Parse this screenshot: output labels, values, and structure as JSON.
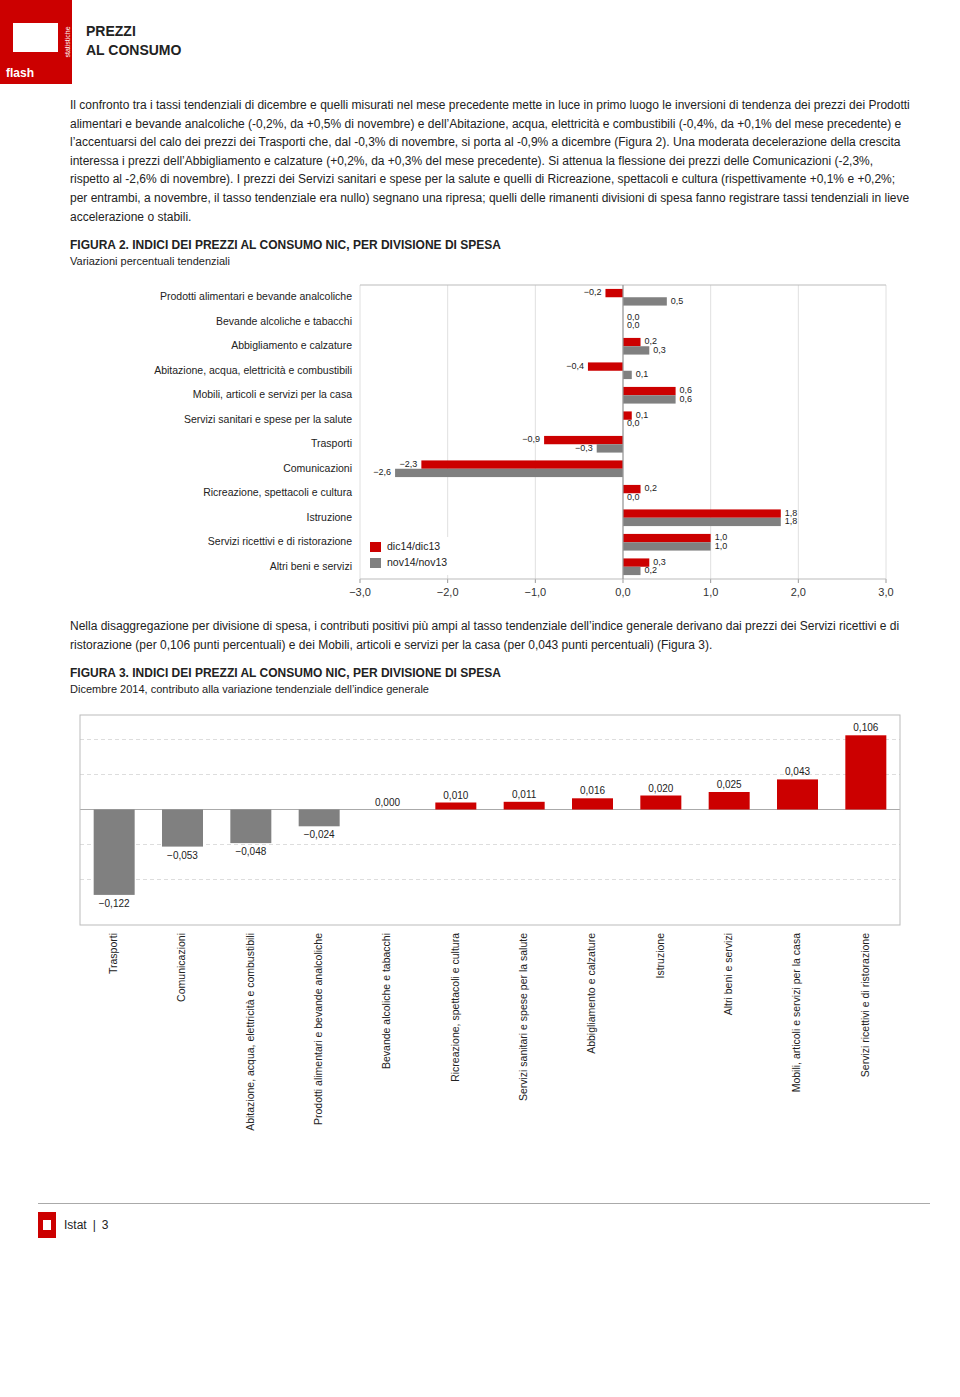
{
  "page": {
    "brand": "flash",
    "brand_subtitle": "statistiche",
    "header_title_line1": "PREZZI",
    "header_title_line2": "AL CONSUMO",
    "color": "#cc0000",
    "body_text1": "Il confronto tra i tassi tendenziali di dicembre e quelli misurati nel mese precedente mette in luce in primo luogo le inversioni di tendenza dei prezzi dei Prodotti alimentari e bevande analcoliche (-0,2%, da +0,5% di novembre) e dell’Abitazione, acqua, elettricità e combustibili (-0,4%, da +0,1% del mese precedente) e l’accentuarsi del calo dei prezzi dei Trasporti che, dal -0,3% di novembre, si porta al -0,9% a dicembre (Figura 2). Una moderata decelerazione della crescita interessa i prezzi dell’Abbigliamento e calzature (+0,2%, da +0,3% del mese precedente). Si attenua la flessione dei prezzi delle Comunicazioni (-2,3%, rispetto al -2,6% di novembre). I prezzi dei Servizi sanitari e spese per la salute e quelli di Ricreazione, spettacoli e cultura (rispettivamente +0,1% e +0,2%; per entrambi, a novembre, il tasso tendenziale era nullo) segnano una ripresa; quelli delle rimanenti divisioni di spesa fanno registrare tassi tendenziali in lieve accelerazione o stabili.",
    "body_text2": "Nella disaggregazione per divisione di spesa, i contributi positivi più ampi al tasso tendenziale dell’indice generale derivano dai prezzi dei Servizi ricettivi e di ristorazione (per 0,106 punti percentuali) e dei Mobili, articoli e servizi per la casa (per 0,043 punti percentuali) (Figura 3).",
    "footer_brand": "Istat",
    "footer_separator": "|",
    "footer_page": "3"
  },
  "chart_data": [
    {
      "type": "bar",
      "orientation": "horizontal",
      "title": "FIGURA 2. INDICI DEI PREZZI AL CONSUMO NIC, PER DIVISIONE DI SPESA",
      "subtitle": "Variazioni percentuali tendenziali",
      "categories": [
        "Prodotti alimentari e bevande analcoliche",
        "Bevande alcoliche e tabacchi",
        "Abbigliamento e calzature",
        "Abitazione, acqua, elettricità e combustibili",
        "Mobili, articoli e servizi per la casa",
        "Servizi sanitari e spese per la salute",
        "Trasporti",
        "Comunicazioni",
        "Ricreazione, spettacoli e cultura",
        "Istruzione",
        "Servizi ricettivi e di ristorazione",
        "Altri beni e servizi"
      ],
      "series": [
        {
          "name": "dic14/dic13",
          "color": "#cc0000",
          "values": [
            -0.2,
            0.0,
            0.2,
            -0.4,
            0.6,
            0.1,
            -0.9,
            -2.3,
            0.2,
            1.8,
            1.0,
            0.3
          ],
          "value_labels": [
            "−0,2",
            "0,0",
            "0,2",
            "−0,4",
            "0,6",
            "0,1",
            "−0,9",
            "−2,3",
            "0,2",
            "1,8",
            "1,0",
            "0,3"
          ]
        },
        {
          "name": "nov14/nov13",
          "color": "#808080",
          "values": [
            0.5,
            0.0,
            0.3,
            0.1,
            0.6,
            0.0,
            -0.3,
            -2.6,
            0.0,
            1.8,
            1.0,
            0.2
          ],
          "value_labels": [
            "0,5",
            "0,0",
            "0,3",
            "0,1",
            "0,6",
            "0,0",
            "−0,3",
            "−2,6",
            "0,0",
            "1,8",
            "1,0",
            "0,2"
          ]
        }
      ],
      "xlim": [
        -3.0,
        3.0
      ],
      "xticks": [
        {
          "value": -3.0,
          "label": "−3,0"
        },
        {
          "value": -2.0,
          "label": "−2,0"
        },
        {
          "value": -1.0,
          "label": "−1,0"
        },
        {
          "value": 0.0,
          "label": "0,0"
        },
        {
          "value": 1.0,
          "label": "1,0"
        },
        {
          "value": 2.0,
          "label": "2,0"
        },
        {
          "value": 3.0,
          "label": "3,0"
        }
      ],
      "grid": true,
      "legend": "lower left",
      "data_labels": true
    },
    {
      "type": "bar",
      "title": "FIGURA 3. INDICI DEI PREZZI AL CONSUMO NIC, PER DIVISIONE DI SPESA",
      "subtitle": "Dicembre 2014, contributo alla variazione tendenziale dell’indice generale",
      "categories": [
        "Trasporti",
        "Comunicazioni",
        "Abitazione, acqua, elettricità e combustibili",
        "Prodotti alimentari e bevande analcoliche",
        "Bevande alcoliche e tabacchi",
        "Ricreazione, spettacoli e cultura",
        "Servizi sanitari e spese per la salute",
        "Abbigliamento e calzature",
        "Istruzione",
        "Altri beni e servizi",
        "Mobili, articoli e servizi per la casa",
        "Servizi ricettivi e di ristorazione"
      ],
      "values": [
        -0.122,
        -0.053,
        -0.048,
        -0.024,
        0.0,
        0.01,
        0.011,
        0.016,
        0.02,
        0.025,
        0.043,
        0.106
      ],
      "value_labels": [
        "−0,122",
        "−0,053",
        "−0,048",
        "−0,024",
        "0,000",
        "0,010",
        "0,011",
        "0,016",
        "0,020",
        "0,025",
        "0,043",
        "0,106"
      ],
      "colors": [
        "#808080",
        "#808080",
        "#808080",
        "#808080",
        "#cc0000",
        "#cc0000",
        "#cc0000",
        "#cc0000",
        "#cc0000",
        "#cc0000",
        "#cc0000",
        "#cc0000"
      ],
      "ylim": [
        -0.165,
        0.135
      ],
      "yticks": [
        -0.1,
        -0.05,
        0,
        0.05,
        0.1
      ],
      "grid": true,
      "tick_labels": "x",
      "data_labels": true
    }
  ]
}
